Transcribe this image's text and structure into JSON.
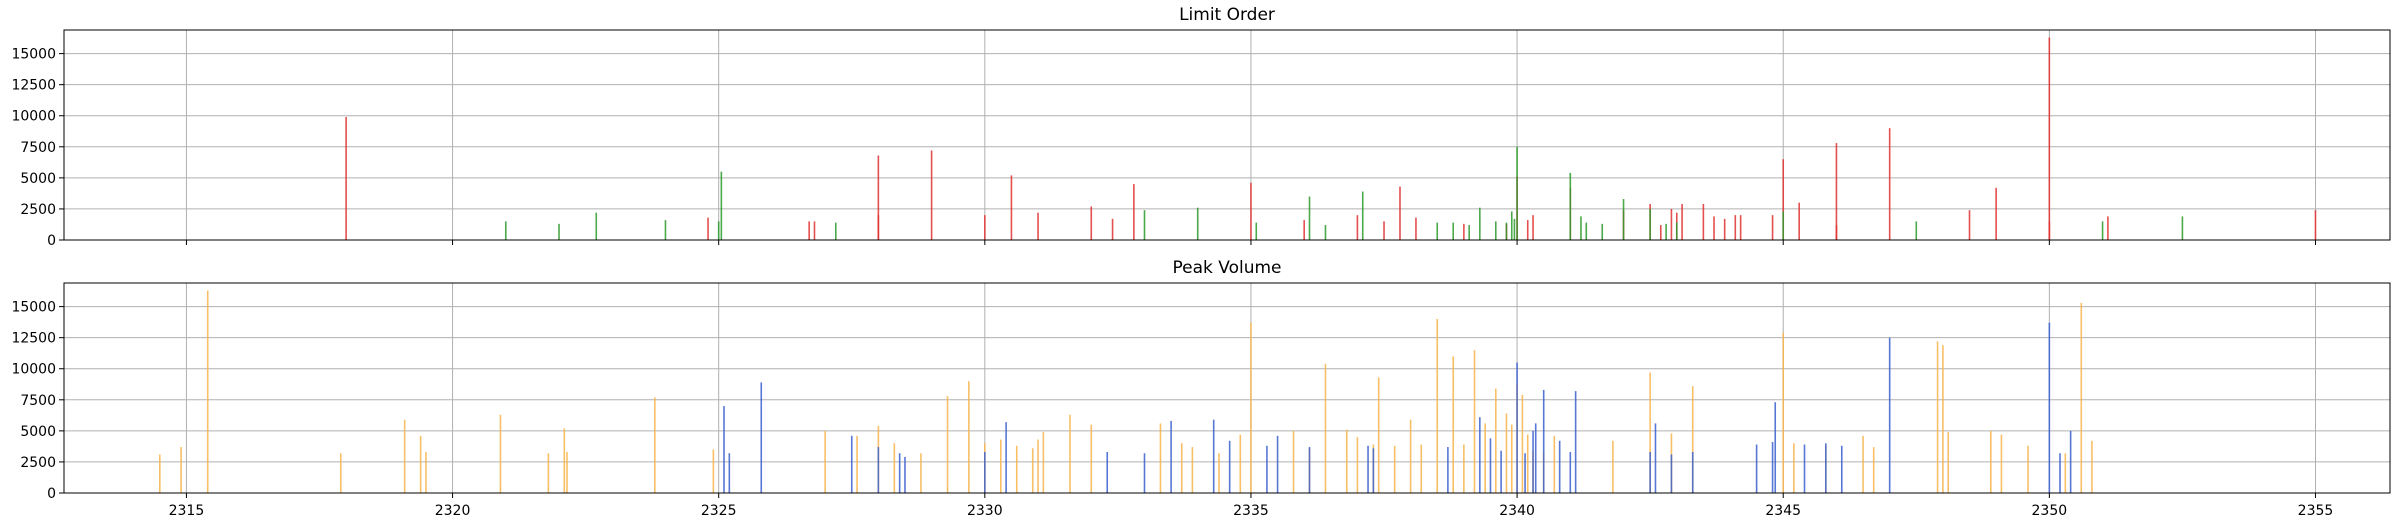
{
  "chart_data": [
    {
      "type": "bar",
      "title": "Limit Order",
      "xlabel": "",
      "ylabel": "",
      "xlim": [
        2312.7,
        2356.4
      ],
      "ylim": [
        0,
        16900
      ],
      "xticks": [
        2315,
        2320,
        2325,
        2330,
        2335,
        2340,
        2345,
        2350,
        2355
      ],
      "yticks": [
        0,
        2500,
        5000,
        7500,
        10000,
        12500,
        15000
      ],
      "xtick_labels_visible": false,
      "grid": true,
      "colors": {
        "red": "#e03030",
        "green": "#2a9a2a"
      },
      "series": [
        {
          "color_key": "red",
          "points": [
            [
              2318.0,
              9900
            ],
            [
              2324.8,
              1800
            ],
            [
              2326.7,
              1500
            ],
            [
              2326.8,
              1500
            ],
            [
              2328.0,
              6800
            ],
            [
              2328.0,
              2000
            ],
            [
              2329.0,
              7200
            ],
            [
              2330.0,
              2000
            ],
            [
              2330.5,
              5200
            ],
            [
              2331.0,
              2200
            ],
            [
              2332.0,
              2700
            ],
            [
              2332.4,
              1700
            ],
            [
              2332.8,
              4500
            ],
            [
              2335.0,
              4600
            ],
            [
              2336.0,
              1600
            ],
            [
              2337.0,
              2000
            ],
            [
              2337.5,
              1500
            ],
            [
              2337.8,
              4300
            ],
            [
              2338.1,
              1800
            ],
            [
              2339.0,
              1300
            ],
            [
              2339.8,
              1300
            ],
            [
              2340.0,
              5100
            ],
            [
              2340.2,
              1600
            ],
            [
              2340.3,
              2000
            ],
            [
              2341.0,
              4200
            ],
            [
              2342.0,
              2400
            ],
            [
              2342.5,
              2900
            ],
            [
              2342.7,
              1200
            ],
            [
              2342.9,
              2500
            ],
            [
              2343.0,
              2200
            ],
            [
              2343.1,
              2900
            ],
            [
              2343.5,
              2900
            ],
            [
              2343.7,
              1900
            ],
            [
              2343.9,
              1700
            ],
            [
              2344.1,
              2000
            ],
            [
              2344.2,
              2000
            ],
            [
              2344.8,
              2000
            ],
            [
              2345.0,
              6500
            ],
            [
              2345.3,
              3000
            ],
            [
              2346.0,
              7800
            ],
            [
              2346.0,
              1200
            ],
            [
              2347.0,
              9000
            ],
            [
              2348.5,
              2400
            ],
            [
              2349.0,
              4200
            ],
            [
              2350.0,
              1500
            ],
            [
              2350.0,
              16300
            ],
            [
              2351.1,
              1900
            ],
            [
              2355.0,
              2400
            ]
          ]
        },
        {
          "color_key": "green",
          "points": [
            [
              2321.0,
              1500
            ],
            [
              2322.0,
              1300
            ],
            [
              2322.7,
              2200
            ],
            [
              2324.0,
              1600
            ],
            [
              2325.0,
              1500
            ],
            [
              2325.05,
              5500
            ],
            [
              2327.2,
              1400
            ],
            [
              2333.0,
              2400
            ],
            [
              2334.0,
              2600
            ],
            [
              2335.1,
              1400
            ],
            [
              2336.1,
              3500
            ],
            [
              2336.4,
              1200
            ],
            [
              2337.1,
              3900
            ],
            [
              2338.5,
              1400
            ],
            [
              2338.8,
              1400
            ],
            [
              2339.1,
              1200
            ],
            [
              2339.3,
              2600
            ],
            [
              2339.6,
              1500
            ],
            [
              2339.8,
              1400
            ],
            [
              2339.9,
              2300
            ],
            [
              2339.95,
              1700
            ],
            [
              2340.0,
              7500
            ],
            [
              2341.0,
              5400
            ],
            [
              2341.2,
              1900
            ],
            [
              2341.3,
              1400
            ],
            [
              2341.6,
              1300
            ],
            [
              2342.0,
              3300
            ],
            [
              2342.5,
              2500
            ],
            [
              2342.8,
              1300
            ],
            [
              2343.0,
              1400
            ],
            [
              2345.0,
              2300
            ],
            [
              2347.5,
              1500
            ],
            [
              2351.0,
              1500
            ],
            [
              2352.5,
              1900
            ]
          ]
        }
      ]
    },
    {
      "type": "bar",
      "title": "Peak Volume",
      "xlabel": "",
      "ylabel": "",
      "xlim": [
        2312.7,
        2356.4
      ],
      "ylim": [
        0,
        16900
      ],
      "xticks": [
        2315,
        2320,
        2325,
        2330,
        2335,
        2340,
        2345,
        2350,
        2355
      ],
      "xtick_labels": [
        "2315",
        "2320",
        "2325",
        "2330",
        "2335",
        "2340",
        "2345",
        "2350",
        "2355"
      ],
      "yticks": [
        0,
        2500,
        5000,
        7500,
        10000,
        12500,
        15000
      ],
      "grid": true,
      "colors": {
        "orange": "#f7b44c",
        "blue": "#3a5fcd"
      },
      "series": [
        {
          "color_key": "orange",
          "points": [
            [
              2314.5,
              3100
            ],
            [
              2314.9,
              3700
            ],
            [
              2315.4,
              16300
            ],
            [
              2317.9,
              3200
            ],
            [
              2319.1,
              5900
            ],
            [
              2319.4,
              4600
            ],
            [
              2319.5,
              3300
            ],
            [
              2320.9,
              6300
            ],
            [
              2321.8,
              3200
            ],
            [
              2322.1,
              5200
            ],
            [
              2322.15,
              3300
            ],
            [
              2323.8,
              7700
            ],
            [
              2324.9,
              3500
            ],
            [
              2327.0,
              5000
            ],
            [
              2327.6,
              4600
            ],
            [
              2328.0,
              5400
            ],
            [
              2328.3,
              4000
            ],
            [
              2328.8,
              3200
            ],
            [
              2329.3,
              7800
            ],
            [
              2329.7,
              9000
            ],
            [
              2330.0,
              4000
            ],
            [
              2330.3,
              4300
            ],
            [
              2330.6,
              3800
            ],
            [
              2330.9,
              3600
            ],
            [
              2331.0,
              4300
            ],
            [
              2331.1,
              4900
            ],
            [
              2331.6,
              6300
            ],
            [
              2332.0,
              5500
            ],
            [
              2333.3,
              5600
            ],
            [
              2333.7,
              4000
            ],
            [
              2333.9,
              3700
            ],
            [
              2334.4,
              3200
            ],
            [
              2334.8,
              4700
            ],
            [
              2335.0,
              13700
            ],
            [
              2335.8,
              5000
            ],
            [
              2336.1,
              3600
            ],
            [
              2336.4,
              10400
            ],
            [
              2336.8,
              5100
            ],
            [
              2337.0,
              4500
            ],
            [
              2337.3,
              3900
            ],
            [
              2337.4,
              9300
            ],
            [
              2337.7,
              3800
            ],
            [
              2338.0,
              5900
            ],
            [
              2338.2,
              3900
            ],
            [
              2338.5,
              14000
            ],
            [
              2338.8,
              11000
            ],
            [
              2339.0,
              3900
            ],
            [
              2339.2,
              11500
            ],
            [
              2339.4,
              5600
            ],
            [
              2339.6,
              8400
            ],
            [
              2339.8,
              6400
            ],
            [
              2339.9,
              5500
            ],
            [
              2340.0,
              8700
            ],
            [
              2340.1,
              7900
            ],
            [
              2340.2,
              4700
            ],
            [
              2340.3,
              3400
            ],
            [
              2340.5,
              3300
            ],
            [
              2340.7,
              4600
            ],
            [
              2341.8,
              4200
            ],
            [
              2342.5,
              9700
            ],
            [
              2342.9,
              4800
            ],
            [
              2343.3,
              8600
            ],
            [
              2345.0,
              12900
            ],
            [
              2345.2,
              4000
            ],
            [
              2345.8,
              3800
            ],
            [
              2346.5,
              4600
            ],
            [
              2346.7,
              3700
            ],
            [
              2347.9,
              12200
            ],
            [
              2348.0,
              11900
            ],
            [
              2348.1,
              4900
            ],
            [
              2348.9,
              5000
            ],
            [
              2349.1,
              4700
            ],
            [
              2349.6,
              3800
            ],
            [
              2350.3,
              3200
            ],
            [
              2350.6,
              15300
            ],
            [
              2350.8,
              4200
            ]
          ]
        },
        {
          "color_key": "blue",
          "points": [
            [
              2325.1,
              7000
            ],
            [
              2325.2,
              3200
            ],
            [
              2325.8,
              8900
            ],
            [
              2327.5,
              4600
            ],
            [
              2328.0,
              3700
            ],
            [
              2328.4,
              3200
            ],
            [
              2328.5,
              2900
            ],
            [
              2330.0,
              3300
            ],
            [
              2330.4,
              5700
            ],
            [
              2332.3,
              3300
            ],
            [
              2333.0,
              3200
            ],
            [
              2333.5,
              5800
            ],
            [
              2334.3,
              5900
            ],
            [
              2334.6,
              4200
            ],
            [
              2335.3,
              3800
            ],
            [
              2335.5,
              4600
            ],
            [
              2336.1,
              3700
            ],
            [
              2337.2,
              3800
            ],
            [
              2337.3,
              3600
            ],
            [
              2338.7,
              3700
            ],
            [
              2339.3,
              6100
            ],
            [
              2339.5,
              4400
            ],
            [
              2339.7,
              3400
            ],
            [
              2340.0,
              10500
            ],
            [
              2340.15,
              3200
            ],
            [
              2340.3,
              5000
            ],
            [
              2340.35,
              5600
            ],
            [
              2340.5,
              8300
            ],
            [
              2340.8,
              4200
            ],
            [
              2341.0,
              3300
            ],
            [
              2341.1,
              8200
            ],
            [
              2342.5,
              3300
            ],
            [
              2342.6,
              5600
            ],
            [
              2342.9,
              3100
            ],
            [
              2343.3,
              3300
            ],
            [
              2344.5,
              3900
            ],
            [
              2344.8,
              4100
            ],
            [
              2344.85,
              7300
            ],
            [
              2345.4,
              3900
            ],
            [
              2345.8,
              4000
            ],
            [
              2346.1,
              3800
            ],
            [
              2347.0,
              12500
            ],
            [
              2350.0,
              13700
            ],
            [
              2350.2,
              3200
            ],
            [
              2350.4,
              5000
            ]
          ]
        }
      ]
    }
  ]
}
